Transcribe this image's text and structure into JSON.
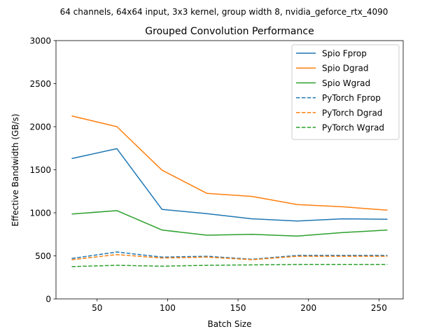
{
  "chart_data": {
    "type": "line",
    "suptitle": "64 channels, 64x64 input, 3x3 kernel, group width 8, nvidia_geforce_rtx_4090",
    "title": "Grouped Convolution Performance",
    "xlabel": "Batch Size",
    "ylabel": "Effective Bandwidth (GB/s)",
    "xlim": [
      20.8,
      267.2
    ],
    "ylim": [
      0,
      3000
    ],
    "xticks": [
      50,
      100,
      150,
      200,
      250
    ],
    "yticks": [
      0,
      500,
      1000,
      1500,
      2000,
      2500,
      3000
    ],
    "grid": false,
    "legend_position": "upper right",
    "x": [
      32,
      64,
      96,
      128,
      160,
      192,
      224,
      256
    ],
    "series": [
      {
        "name": "Spio Fprop",
        "color": "#1f77b4",
        "dash": "solid",
        "values": [
          1630,
          1745,
          1040,
          990,
          930,
          905,
          930,
          925
        ]
      },
      {
        "name": "Spio Dgrad",
        "color": "#ff7f0e",
        "dash": "solid",
        "values": [
          2125,
          2000,
          1495,
          1225,
          1190,
          1095,
          1070,
          1030
        ]
      },
      {
        "name": "Spio Wgrad",
        "color": "#2ca02c",
        "dash": "solid",
        "values": [
          985,
          1025,
          800,
          740,
          750,
          730,
          770,
          800
        ]
      },
      {
        "name": "PyTorch Fprop",
        "color": "#1f77b4",
        "dash": "dashed",
        "values": [
          470,
          545,
          485,
          495,
          460,
          505,
          505,
          505
        ]
      },
      {
        "name": "PyTorch Dgrad",
        "color": "#ff7f0e",
        "dash": "dashed",
        "values": [
          455,
          515,
          475,
          485,
          455,
          495,
          495,
          495
        ]
      },
      {
        "name": "PyTorch Wgrad",
        "color": "#2ca02c",
        "dash": "dashed",
        "values": [
          375,
          390,
          380,
          390,
          395,
          400,
          400,
          400
        ]
      }
    ]
  }
}
